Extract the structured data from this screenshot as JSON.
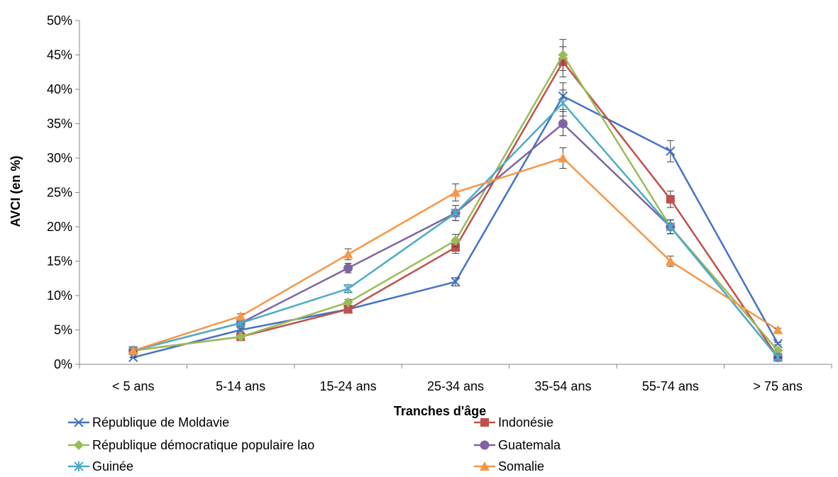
{
  "chart_data": {
    "type": "line",
    "title": "",
    "xlabel": "Tranches d'âge",
    "ylabel": "AVCI (en %)",
    "categories": [
      "< 5 ans",
      "5-14 ans",
      "15-24 ans",
      "25-34 ans",
      "35-54 ans",
      "55-74 ans",
      "> 75 ans"
    ],
    "ylim": [
      0,
      50
    ],
    "yticks": [
      "0%",
      "5%",
      "10%",
      "15%",
      "20%",
      "25%",
      "30%",
      "35%",
      "40%",
      "45%",
      "50%"
    ],
    "grid": false,
    "legend_position": "bottom",
    "error_bars": true,
    "series": [
      {
        "name": "République de Moldavie",
        "color": "#4472C4",
        "marker": "x",
        "values": [
          1,
          5,
          8,
          12,
          39,
          31,
          3
        ]
      },
      {
        "name": "Indonésie",
        "color": "#C0504D",
        "marker": "square",
        "values": [
          2,
          4,
          8,
          17,
          44,
          24,
          1
        ]
      },
      {
        "name": "République démocratique populaire lao",
        "color": "#9BBB59",
        "marker": "diamond",
        "values": [
          2,
          4,
          9,
          18,
          45,
          20,
          2
        ]
      },
      {
        "name": "Guatemala",
        "color": "#8064A2",
        "marker": "circle",
        "values": [
          2,
          6,
          14,
          22,
          35,
          20,
          1
        ]
      },
      {
        "name": "Guinée",
        "color": "#4BACC6",
        "marker": "star",
        "values": [
          2,
          6,
          11,
          22,
          38,
          20,
          1
        ]
      },
      {
        "name": "Somalie",
        "color": "#F79646",
        "marker": "triangle",
        "values": [
          2,
          7,
          16,
          25,
          30,
          15,
          5
        ]
      }
    ]
  }
}
